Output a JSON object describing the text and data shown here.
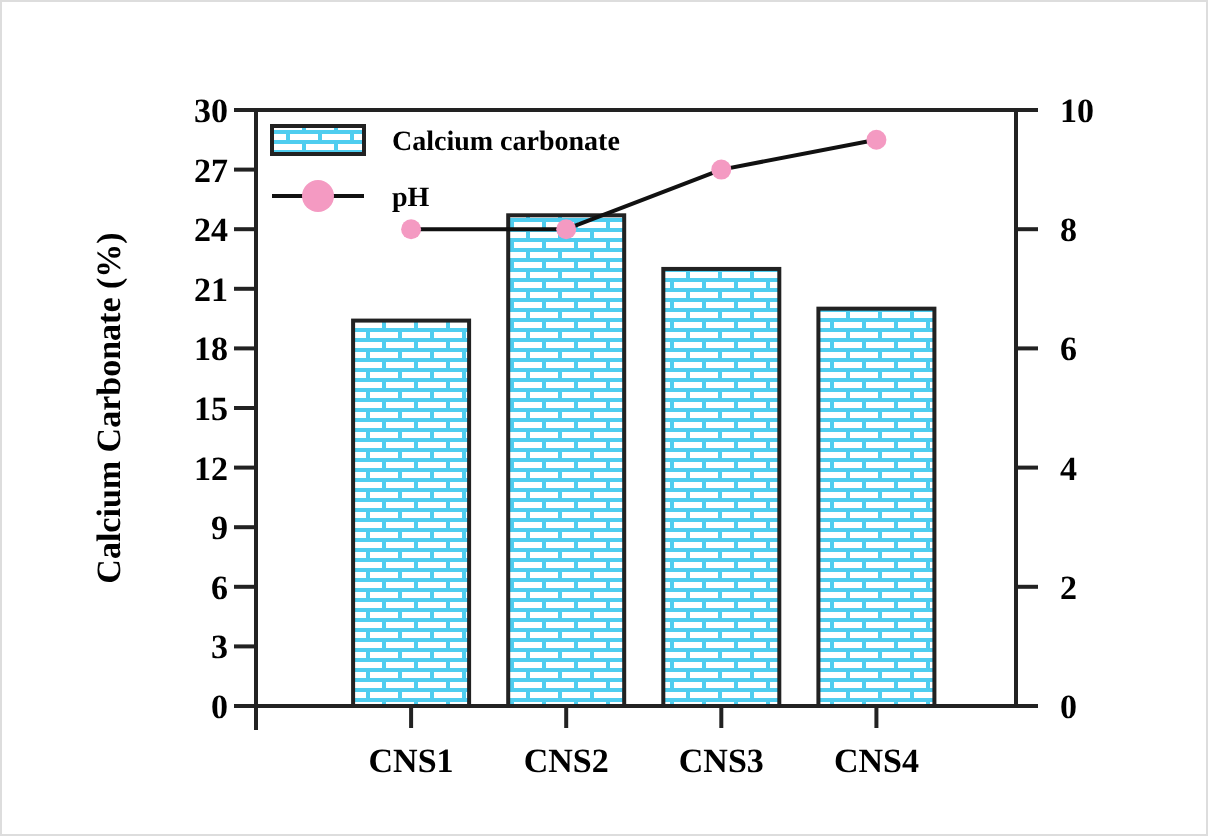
{
  "chart_data": {
    "type": "bar",
    "categories": [
      "CNS1",
      "CNS2",
      "CNS3",
      "CNS4"
    ],
    "ylabel": "Calcium Carbonate (%)",
    "ylim": [
      0,
      30
    ],
    "yticks": [
      0,
      3,
      6,
      9,
      12,
      15,
      18,
      21,
      24,
      27,
      30
    ],
    "y2lim": [
      0,
      10
    ],
    "y2ticks": [
      0,
      2,
      4,
      6,
      8,
      10
    ],
    "legend": "top left",
    "grid": false,
    "series": [
      {
        "name": "Calcium carbonate",
        "color": "#4fcdef",
        "values": [
          19.4,
          24.7,
          22.0,
          20.0
        ]
      },
      {
        "name": "pH",
        "type": "line",
        "axis": "y2",
        "color": "#f49ac2",
        "marker": "circle",
        "values": [
          8.0,
          8.0,
          9.0,
          9.5
        ]
      }
    ]
  }
}
